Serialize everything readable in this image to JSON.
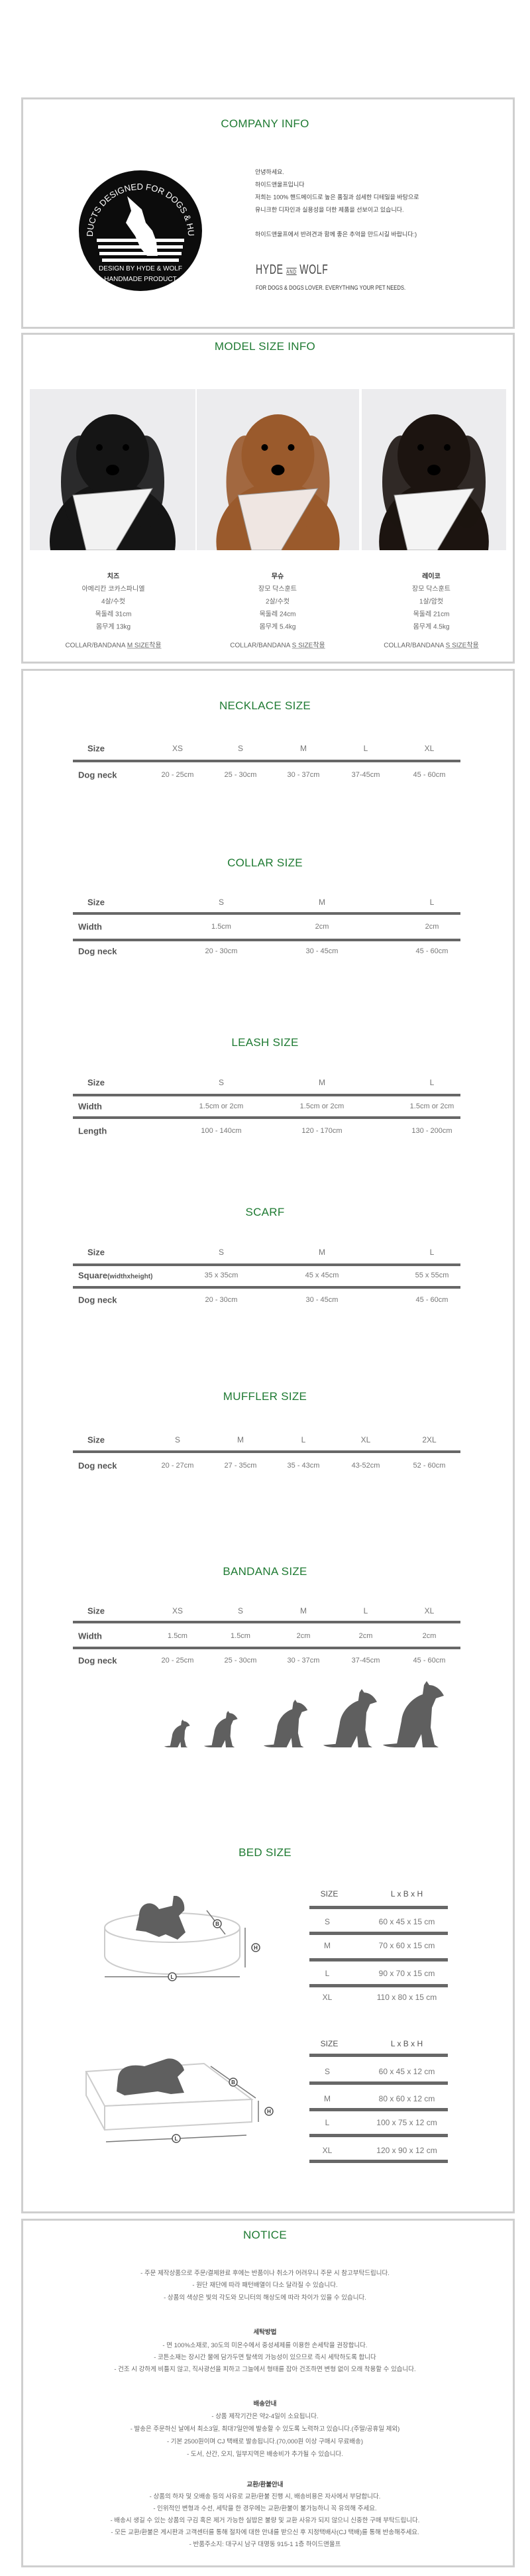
{
  "company": {
    "title": "COMPANY INFO",
    "logo_text_top": "PRODUCTS DESIGNED FOR DOGS & HUMAN",
    "logo_text_bottom_1": "DESIGN BY HYDE & WOLF",
    "logo_text_bottom_2": "HANDMADE PRODUCT",
    "intro": [
      "안녕하세요.",
      "하이드앤울프입니다",
      "저희는 100% 핸드메이드로 높은 품질과 섬세한 디테일을 바탕으로",
      "유니크한 디자인과 실용성을 더한 제품을 선보이고 있습니다."
    ],
    "closing": "하이드앤울프에서 반려견과 함께 좋은 추억을 만드시길 바랍니다:)",
    "brand_left": "HYDE",
    "brand_mid": "AND",
    "brand_right": "WOLF",
    "tagline": "FOR DOGS & DOGS LOVER. EVERYTHING YOUR PET NEEDS."
  },
  "models": {
    "title": "MODEL SIZE INFO",
    "items": [
      {
        "name": "치즈",
        "breed": "아메리칸 코카스파니엘",
        "age_sex": "4살/수컷",
        "neck": "목둘레 31cm",
        "weight": "몸무게 13kg",
        "note_prefix": "COLLAR/BANDANA ",
        "note_size": "M SIZE착용",
        "fur": "#151515",
        "scarf": "#f2f2f2"
      },
      {
        "name": "무슈",
        "breed": "장모 닥스훈트",
        "age_sex": "2살/수컷",
        "neck": "목둘레 24cm",
        "weight": "몸무게 5.4kg",
        "note_prefix": "COLLAR/BANDANA ",
        "note_size": "S SIZE착용",
        "fur": "#9a5a2c",
        "scarf": "#efe6e2"
      },
      {
        "name": "레이코",
        "breed": "장모 닥스훈트",
        "age_sex": "1살/암컷",
        "neck": "목둘레 21cm",
        "weight": "몸무게 4.5kg",
        "note_prefix": "COLLAR/BANDANA ",
        "note_size": "S SIZE착용",
        "fur": "#1c1410",
        "scarf": "#f4f4f4"
      }
    ]
  },
  "size_tables": [
    {
      "id": "necklace",
      "title": "NECKLACE SIZE",
      "header_label": "Size",
      "columns": [
        "XS",
        "S",
        "M",
        "L",
        "XL"
      ],
      "rows": [
        {
          "label": "Dog neck",
          "values": [
            "20 - 25cm",
            "25 - 30cm",
            "30 - 37cm",
            "37-45cm",
            "45 - 60cm"
          ]
        }
      ]
    },
    {
      "id": "collar",
      "title": "COLLAR SIZE",
      "header_label": "Size",
      "columns": [
        "S",
        "M",
        "L"
      ],
      "rows": [
        {
          "label": "Width",
          "values": [
            "1.5cm",
            "2cm",
            "2cm"
          ]
        },
        {
          "label": "Dog neck",
          "values": [
            "20 - 30cm",
            "30 - 45cm",
            "45 - 60cm"
          ]
        }
      ]
    },
    {
      "id": "leash",
      "title": "LEASH SIZE",
      "header_label": "Size",
      "columns": [
        "S",
        "M",
        "L"
      ],
      "rows": [
        {
          "label": "Width",
          "values": [
            "1.5cm or 2cm",
            "1.5cm or 2cm",
            "1.5cm or 2cm"
          ]
        },
        {
          "label": "Length",
          "values": [
            "100 - 140cm",
            "120 - 170cm",
            "130 - 200cm"
          ]
        }
      ]
    },
    {
      "id": "scarf",
      "title": "SCARF",
      "header_label": "Size",
      "columns": [
        "S",
        "M",
        "L"
      ],
      "rows": [
        {
          "label": "Square",
          "label_suffix": "(widthxheight)",
          "values": [
            "35 x 35cm",
            "45 x 45cm",
            "55 x 55cm"
          ]
        },
        {
          "label": "Dog neck",
          "values": [
            "20 - 30cm",
            "30 - 45cm",
            "45 - 60cm"
          ]
        }
      ]
    },
    {
      "id": "muffler",
      "title": "MUFFLER SIZE",
      "header_label": "Size",
      "columns": [
        "S",
        "M",
        "L",
        "XL",
        "2XL"
      ],
      "rows": [
        {
          "label": "Dog neck",
          "values": [
            "20 - 27cm",
            "27 - 35cm",
            "35 - 43cm",
            "43-52cm",
            "52 - 60cm"
          ]
        }
      ]
    },
    {
      "id": "bandana",
      "title": "BANDANA SIZE",
      "header_label": "Size",
      "columns": [
        "XS",
        "S",
        "M",
        "L",
        "XL"
      ],
      "rows": [
        {
          "label": "Width",
          "values": [
            "1.5cm",
            "1.5cm",
            "2cm",
            "2cm",
            "2cm"
          ]
        },
        {
          "label": "Dog neck",
          "values": [
            "20 - 25cm",
            "25 - 30cm",
            "30 - 37cm",
            "37-45cm",
            "45 - 60cm"
          ]
        }
      ]
    }
  ],
  "bed": {
    "title": "BED SIZE",
    "dimension_labels": {
      "length": "L",
      "breadth": "B",
      "height": "H"
    },
    "tables": [
      {
        "id": "round",
        "header": [
          "SIZE",
          "L x B x H"
        ],
        "rows": [
          [
            "S",
            "60 x 45 x 15 cm"
          ],
          [
            "M",
            "70 x 60 x 15 cm"
          ],
          [
            "L",
            "90 x 70 x 15 cm"
          ],
          [
            "XL",
            "110 x 80 x 15 cm"
          ]
        ]
      },
      {
        "id": "square",
        "header": [
          "SIZE",
          "L x B x H"
        ],
        "rows": [
          [
            "S",
            "60 x 45 x 12 cm"
          ],
          [
            "M",
            "80 x 60 x 12 cm"
          ],
          [
            "L",
            "100 x 75 x 12 cm"
          ],
          [
            "XL",
            "120 x 90 x 12 cm"
          ]
        ]
      }
    ]
  },
  "notice": {
    "title": "NOTICE",
    "general": [
      "- 주문 제작상품으로 주문/결제완료 후에는 반품이나 취소가 어려우니 주문 시 참고부탁드립니다.",
      "- 원단 재단에 따라 패턴배열이 다소 달라질 수 있습니다.",
      "- 상품의 색상은 빛의 각도와 모니터의 해상도에 따라 차이가 있을 수 있습니다."
    ],
    "washing_title": "세탁방법",
    "washing": [
      "- 면 100%소재로, 30도의 미온수에서 중성세제를 이용한 손세탁을 권장합니다.",
      "- 코튼소재는 장시간 물에 담가두면 탈색의 가능성이 있으므로 즉시 세탁하도록 합니다",
      "- 건조 시 강하게 비틀지 않고, 직사광선을 피하고 그늘에서 형태를 잡아 건조하면 변형 없이 오래 착용할 수 있습니다."
    ],
    "shipping_title": "배송안내",
    "shipping": [
      "- 상품 제작기간은 약2-4일이 소요됩니다.",
      "- 발송은 주문하신 날에서 최소3일, 최대7일안에 발송할 수 있도록 노력하고 있습니다.(주말/공휴일 제외)",
      "- 기본 2500원이며  CJ 택배로 발송됩니다.(70,000원 이상 구매시 무료배송)",
      "- 도서, 산간, 오지, 일부지역은 배송비가 추가될 수 있습니다."
    ],
    "exchange_title": "교환/환불안내",
    "exchange": [
      "- 상품의 하자 및 오배송 등의 사유로 교환/환불 진행 시, 배송비용은 자사에서 부담합니다.",
      "- 인위적인 변형과 수선, 세탁을 한 경우에는 교환/환불이 불가능하니 꼭 유의해 주세요.",
      "- 배송시 생길 수 있는 상품의 구김 혹은 제거 가능한 실밥은 불량 및 교환 사유가 되지 않으니 신중한 구매 부탁드립니다.",
      "- 모든 교환/환불은 게시판과 고객센터를 통해 절차에 대한 안내를 받으신 후 지정택배사(CJ 택배)를 통해 반송해주세요.",
      "- 반품주소지: 대구시 남구 대명동 915-1 1층 하이드앤울프"
    ]
  },
  "colors": {
    "accent": "#1e7a32",
    "rule": "#676767",
    "border": "#cfcfcf",
    "silhouette": "#5f5f5f"
  }
}
